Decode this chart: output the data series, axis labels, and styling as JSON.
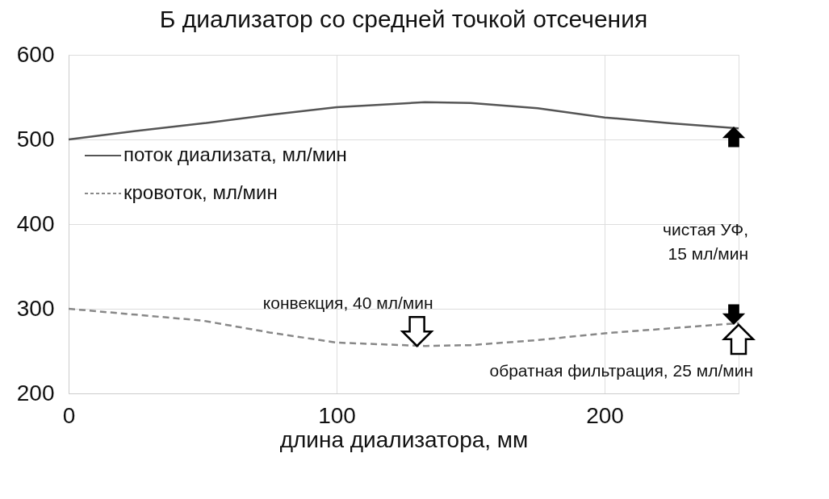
{
  "chart_data": {
    "type": "line",
    "title": "Б   диализатор со средней точкой отсечения",
    "xlabel": "длина диализатора, мм",
    "x": [
      0,
      25,
      50,
      75,
      100,
      133,
      150,
      175,
      200,
      225,
      250
    ],
    "series": [
      {
        "name": "поток диализата, мл/мин",
        "color": "#555555",
        "line_style": "solid",
        "values": [
          500,
          510,
          519,
          529,
          538,
          544,
          543,
          537,
          526,
          519,
          513
        ]
      },
      {
        "name": "кровоток, мл/мин",
        "color": "#888888",
        "line_style": "dashed",
        "values": [
          300,
          293,
          286,
          272,
          260,
          256,
          257,
          263,
          271,
          277,
          283
        ]
      }
    ],
    "xlim": [
      0,
      250
    ],
    "ylim": [
      200,
      600
    ],
    "xticks": [
      0,
      100,
      200
    ],
    "yticks": [
      200,
      300,
      400,
      500,
      600
    ],
    "grid": true,
    "legend": "top left",
    "marker": "none",
    "annotations": [
      {
        "text": "конвекция,  40 мл/мин",
        "x": 130,
        "y": 256
      },
      {
        "text": "обратная  фильтрация,  25 мл/мин",
        "x": 250,
        "y": 283
      },
      "чистая УФ,\n15 мл/мин"
    ]
  }
}
